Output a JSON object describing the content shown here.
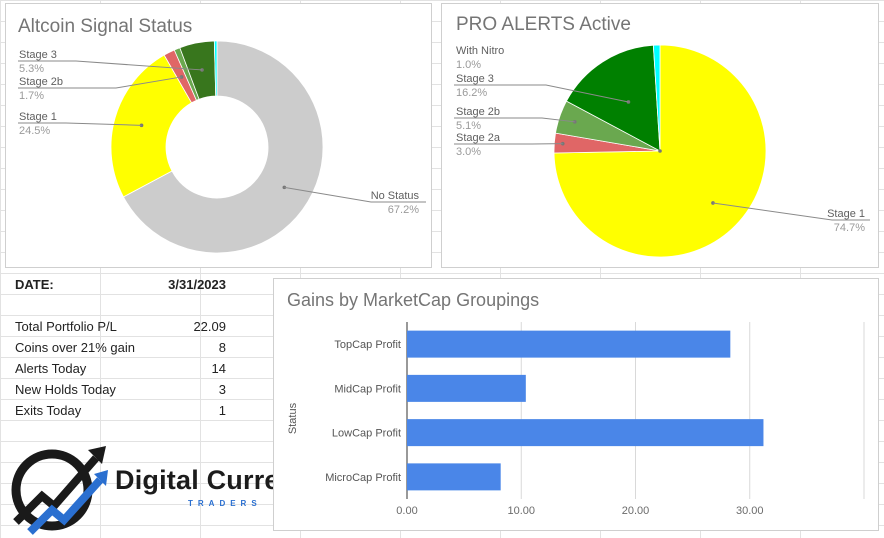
{
  "colors": {
    "yellow": "#ffff00",
    "grey": "#cccccc",
    "dark_green": "#38761d",
    "green": "#6aa84f",
    "red": "#e06666",
    "cyan": "#00ffff",
    "pro_dark_green": "#008000",
    "bar_blue": "#4a86e8"
  },
  "altcoin_chart": {
    "title": "Altcoin Signal Status",
    "chart_data": {
      "type": "pie",
      "donut": true,
      "slices": [
        {
          "label": "No Status",
          "value": 67.2,
          "pct": "67.2%",
          "color": "#cccccc"
        },
        {
          "label": "Stage 1",
          "value": 24.5,
          "pct": "24.5%",
          "color": "#ffff00"
        },
        {
          "label": "Stage 2b",
          "value": 1.7,
          "pct": "1.7%",
          "color": "#e06666"
        },
        {
          "label": "",
          "value": 0.9,
          "pct": "",
          "color": "#6aa84f"
        },
        {
          "label": "Stage 3",
          "value": 5.3,
          "pct": "5.3%",
          "color": "#38761d"
        },
        {
          "label": "",
          "value": 0.4,
          "pct": "",
          "color": "#00ffff"
        }
      ]
    }
  },
  "pro_chart": {
    "title": "PRO ALERTS Active",
    "chart_data": {
      "type": "pie",
      "slices": [
        {
          "label": "Stage 1",
          "value": 74.7,
          "pct": "74.7%",
          "color": "#ffff00"
        },
        {
          "label": "Stage 2a",
          "value": 3.0,
          "pct": "3.0%",
          "color": "#e06666"
        },
        {
          "label": "Stage 2b",
          "value": 5.1,
          "pct": "5.1%",
          "color": "#6aa84f"
        },
        {
          "label": "Stage 3",
          "value": 16.2,
          "pct": "16.2%",
          "color": "#008000"
        },
        {
          "label": "With Nitro",
          "value": 1.0,
          "pct": "1.0%",
          "color": "#00ffff"
        }
      ]
    }
  },
  "summary": {
    "date_label": "DATE:",
    "date_value": "3/31/2023",
    "rows": [
      {
        "label": "Total Portfolio P/L",
        "value": "22.09"
      },
      {
        "label": "Coins over 21% gain",
        "value": "8"
      },
      {
        "label": "Alerts Today",
        "value": "14"
      },
      {
        "label": "New Holds Today",
        "value": "3"
      },
      {
        "label": "Exits Today",
        "value": "1"
      }
    ]
  },
  "gains_chart": {
    "title": "Gains by MarketCap Groupings",
    "chart_data": {
      "type": "bar",
      "orientation": "horizontal",
      "categories": [
        "TopCap Profit",
        "MidCap Profit",
        "LowCap Profit",
        "MicroCap Profit"
      ],
      "values": [
        28.3,
        10.4,
        31.2,
        8.2
      ],
      "ylabel": "Status",
      "xlim": [
        0,
        40
      ],
      "ticks": [
        "0.00",
        "10.00",
        "20.00",
        "30.00"
      ],
      "grid": true
    }
  },
  "logo": {
    "name": "Digital Currency",
    "tagline": "TRADERS",
    "icon": "trend-arrow-logo-icon"
  }
}
